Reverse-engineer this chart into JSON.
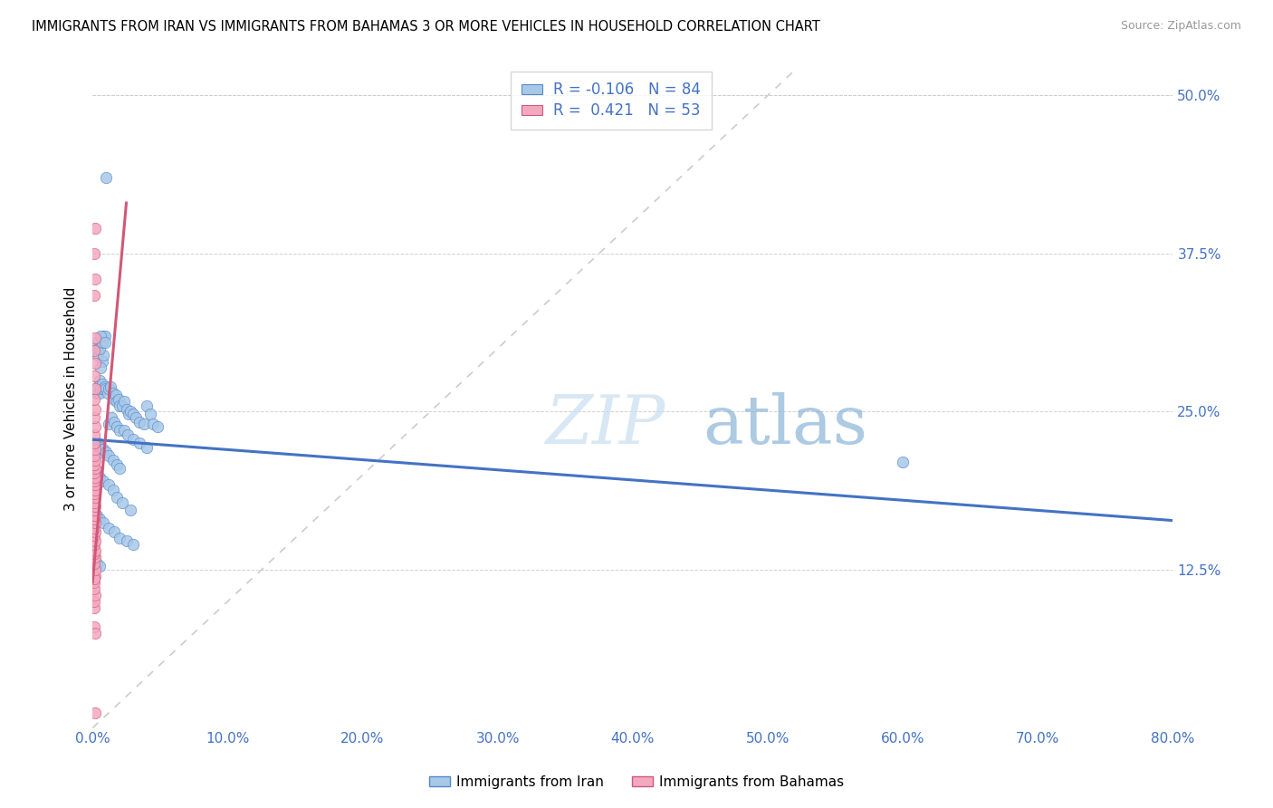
{
  "title": "IMMIGRANTS FROM IRAN VS IMMIGRANTS FROM BAHAMAS 3 OR MORE VEHICLES IN HOUSEHOLD CORRELATION CHART",
  "source": "Source: ZipAtlas.com",
  "xlabel_ticks": [
    "0.0%",
    "10.0%",
    "20.0%",
    "30.0%",
    "40.0%",
    "50.0%",
    "60.0%",
    "70.0%",
    "80.0%"
  ],
  "ylabel_ticks": [
    "12.5%",
    "25.0%",
    "37.5%",
    "50.0%"
  ],
  "ylabel_label": "3 or more Vehicles in Household",
  "xlim": [
    0.0,
    0.8
  ],
  "ylim": [
    0.0,
    0.52
  ],
  "iran_R": "-0.106",
  "iran_N": "84",
  "bahamas_R": "0.421",
  "bahamas_N": "53",
  "iran_color": "#a8c8e8",
  "bahamas_color": "#f4a8c0",
  "iran_edge_color": "#5588cc",
  "bahamas_edge_color": "#d05878",
  "iran_line_color": "#4472c4",
  "bahamas_line_color": "#d05878",
  "diagonal_color": "#cccccc",
  "watermark_zip": "ZIP",
  "watermark_atlas": "atlas",
  "legend_iran_label": "Immigrants from Iran",
  "legend_bahamas_label": "Immigrants from Bahamas",
  "iran_scatter": [
    [
      0.01,
      0.435
    ],
    [
      0.008,
      0.31
    ],
    [
      0.009,
      0.31
    ],
    [
      0.005,
      0.275
    ],
    [
      0.006,
      0.27
    ],
    [
      0.004,
      0.295
    ],
    [
      0.007,
      0.29
    ],
    [
      0.006,
      0.285
    ],
    [
      0.008,
      0.295
    ],
    [
      0.003,
      0.305
    ],
    [
      0.004,
      0.3
    ],
    [
      0.005,
      0.3
    ],
    [
      0.007,
      0.305
    ],
    [
      0.006,
      0.31
    ],
    [
      0.009,
      0.305
    ],
    [
      0.003,
      0.265
    ],
    [
      0.004,
      0.27
    ],
    [
      0.005,
      0.265
    ],
    [
      0.006,
      0.268
    ],
    [
      0.007,
      0.272
    ],
    [
      0.008,
      0.268
    ],
    [
      0.009,
      0.27
    ],
    [
      0.01,
      0.268
    ],
    [
      0.011,
      0.265
    ],
    [
      0.012,
      0.268
    ],
    [
      0.013,
      0.27
    ],
    [
      0.015,
      0.265
    ],
    [
      0.016,
      0.26
    ],
    [
      0.017,
      0.263
    ],
    [
      0.018,
      0.258
    ],
    [
      0.019,
      0.26
    ],
    [
      0.02,
      0.255
    ],
    [
      0.022,
      0.255
    ],
    [
      0.023,
      0.258
    ],
    [
      0.025,
      0.252
    ],
    [
      0.027,
      0.248
    ],
    [
      0.028,
      0.25
    ],
    [
      0.03,
      0.248
    ],
    [
      0.032,
      0.245
    ],
    [
      0.035,
      0.242
    ],
    [
      0.038,
      0.24
    ],
    [
      0.04,
      0.255
    ],
    [
      0.043,
      0.248
    ],
    [
      0.045,
      0.24
    ],
    [
      0.048,
      0.238
    ],
    [
      0.012,
      0.24
    ],
    [
      0.014,
      0.245
    ],
    [
      0.016,
      0.242
    ],
    [
      0.018,
      0.238
    ],
    [
      0.02,
      0.235
    ],
    [
      0.023,
      0.235
    ],
    [
      0.026,
      0.232
    ],
    [
      0.03,
      0.228
    ],
    [
      0.035,
      0.225
    ],
    [
      0.04,
      0.222
    ],
    [
      0.004,
      0.225
    ],
    [
      0.005,
      0.222
    ],
    [
      0.006,
      0.22
    ],
    [
      0.007,
      0.218
    ],
    [
      0.008,
      0.22
    ],
    [
      0.01,
      0.218
    ],
    [
      0.012,
      0.215
    ],
    [
      0.015,
      0.212
    ],
    [
      0.018,
      0.208
    ],
    [
      0.02,
      0.205
    ],
    [
      0.003,
      0.2
    ],
    [
      0.005,
      0.198
    ],
    [
      0.008,
      0.195
    ],
    [
      0.012,
      0.192
    ],
    [
      0.015,
      0.188
    ],
    [
      0.018,
      0.182
    ],
    [
      0.022,
      0.178
    ],
    [
      0.028,
      0.172
    ],
    [
      0.003,
      0.168
    ],
    [
      0.005,
      0.165
    ],
    [
      0.008,
      0.162
    ],
    [
      0.012,
      0.158
    ],
    [
      0.016,
      0.155
    ],
    [
      0.02,
      0.15
    ],
    [
      0.025,
      0.148
    ],
    [
      0.03,
      0.145
    ],
    [
      0.003,
      0.13
    ],
    [
      0.005,
      0.128
    ],
    [
      0.6,
      0.21
    ]
  ],
  "bahamas_scatter": [
    [
      0.002,
      0.012
    ],
    [
      0.001,
      0.08
    ],
    [
      0.002,
      0.075
    ],
    [
      0.001,
      0.095
    ],
    [
      0.001,
      0.1
    ],
    [
      0.002,
      0.105
    ],
    [
      0.001,
      0.11
    ],
    [
      0.001,
      0.115
    ],
    [
      0.002,
      0.12
    ],
    [
      0.001,
      0.118
    ],
    [
      0.002,
      0.125
    ],
    [
      0.001,
      0.13
    ],
    [
      0.002,
      0.135
    ],
    [
      0.001,
      0.138
    ],
    [
      0.002,
      0.14
    ],
    [
      0.001,
      0.145
    ],
    [
      0.002,
      0.148
    ],
    [
      0.001,
      0.152
    ],
    [
      0.002,
      0.155
    ],
    [
      0.001,
      0.158
    ],
    [
      0.002,
      0.162
    ],
    [
      0.001,
      0.165
    ],
    [
      0.002,
      0.168
    ],
    [
      0.001,
      0.172
    ],
    [
      0.002,
      0.175
    ],
    [
      0.001,
      0.178
    ],
    [
      0.002,
      0.182
    ],
    [
      0.001,
      0.185
    ],
    [
      0.002,
      0.188
    ],
    [
      0.002,
      0.192
    ],
    [
      0.001,
      0.195
    ],
    [
      0.002,
      0.198
    ],
    [
      0.001,
      0.202
    ],
    [
      0.002,
      0.205
    ],
    [
      0.001,
      0.208
    ],
    [
      0.002,
      0.212
    ],
    [
      0.001,
      0.215
    ],
    [
      0.002,
      0.22
    ],
    [
      0.001,
      0.225
    ],
    [
      0.001,
      0.232
    ],
    [
      0.002,
      0.238
    ],
    [
      0.001,
      0.245
    ],
    [
      0.002,
      0.252
    ],
    [
      0.001,
      0.26
    ],
    [
      0.002,
      0.268
    ],
    [
      0.001,
      0.278
    ],
    [
      0.002,
      0.288
    ],
    [
      0.001,
      0.298
    ],
    [
      0.002,
      0.308
    ],
    [
      0.001,
      0.342
    ],
    [
      0.002,
      0.355
    ],
    [
      0.001,
      0.375
    ],
    [
      0.002,
      0.395
    ]
  ]
}
